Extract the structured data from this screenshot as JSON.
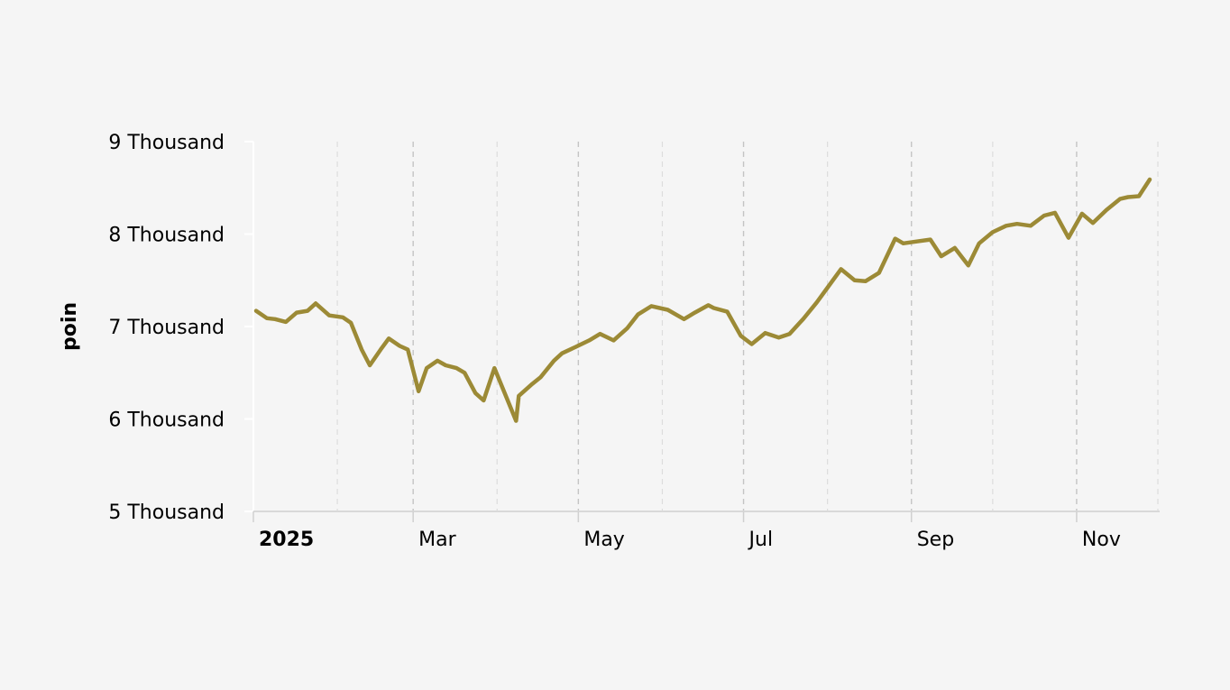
{
  "chart_data": {
    "type": "line",
    "title": "",
    "xlabel": "",
    "ylabel": "poin",
    "ylim": [
      5000,
      9000
    ],
    "xlim": [
      "2025-01-01",
      "2025-12-01"
    ],
    "y_ticks": [
      {
        "value": 5000,
        "label": "5 Thousand"
      },
      {
        "value": 6000,
        "label": "6 Thousand"
      },
      {
        "value": 7000,
        "label": "7 Thousand"
      },
      {
        "value": 8000,
        "label": "8 Thousand"
      },
      {
        "value": 9000,
        "label": "9 Thousand"
      }
    ],
    "x_ticks": [
      {
        "date": "2025-01-01",
        "label": "2025",
        "bold": true
      },
      {
        "date": "2025-03-01",
        "label": "Mar",
        "bold": false
      },
      {
        "date": "2025-05-01",
        "label": "May",
        "bold": false
      },
      {
        "date": "2025-07-01",
        "label": "Jul",
        "bold": false
      },
      {
        "date": "2025-09-01",
        "label": "Sep",
        "bold": false
      },
      {
        "date": "2025-11-01",
        "label": "Nov",
        "bold": false
      }
    ],
    "x_minor_ticks": [
      "2025-02-01",
      "2025-04-01",
      "2025-06-01",
      "2025-08-01",
      "2025-10-01",
      "2025-12-01"
    ],
    "grid": true,
    "line_color": "#9c8a36",
    "series": [
      {
        "name": "",
        "x": [
          "2025-01-02",
          "2025-01-06",
          "2025-01-09",
          "2025-01-13",
          "2025-01-17",
          "2025-01-21",
          "2025-01-24",
          "2025-01-29",
          "2025-02-03",
          "2025-02-06",
          "2025-02-10",
          "2025-02-13",
          "2025-02-17",
          "2025-02-20",
          "2025-02-24",
          "2025-02-27",
          "2025-03-03",
          "2025-03-06",
          "2025-03-10",
          "2025-03-13",
          "2025-03-17",
          "2025-03-20",
          "2025-03-24",
          "2025-03-27",
          "2025-03-31",
          "2025-04-08",
          "2025-04-09",
          "2025-04-14",
          "2025-04-17",
          "2025-04-22",
          "2025-04-25",
          "2025-04-30",
          "2025-05-05",
          "2025-05-09",
          "2025-05-14",
          "2025-05-19",
          "2025-05-23",
          "2025-05-28",
          "2025-06-03",
          "2025-06-09",
          "2025-06-13",
          "2025-06-18",
          "2025-06-20",
          "2025-06-25",
          "2025-06-30",
          "2025-07-04",
          "2025-07-09",
          "2025-07-14",
          "2025-07-18",
          "2025-07-23",
          "2025-07-28",
          "2025-08-01",
          "2025-08-06",
          "2025-08-11",
          "2025-08-15",
          "2025-08-20",
          "2025-08-26",
          "2025-08-29",
          "2025-09-03",
          "2025-09-08",
          "2025-09-12",
          "2025-09-17",
          "2025-09-22",
          "2025-09-26",
          "2025-10-01",
          "2025-10-06",
          "2025-10-10",
          "2025-10-15",
          "2025-10-20",
          "2025-10-24",
          "2025-10-29",
          "2025-11-03",
          "2025-11-07",
          "2025-11-12",
          "2025-11-17",
          "2025-11-20",
          "2025-11-24",
          "2025-11-28"
        ],
        "y": [
          7170,
          7090,
          7080,
          7050,
          7150,
          7170,
          7250,
          7120,
          7100,
          7040,
          6750,
          6580,
          6750,
          6870,
          6790,
          6750,
          6300,
          6550,
          6630,
          6580,
          6550,
          6500,
          6280,
          6200,
          6550,
          5980,
          6250,
          6380,
          6450,
          6630,
          6710,
          6780,
          6850,
          6920,
          6850,
          6980,
          7130,
          7220,
          7180,
          7080,
          7150,
          7230,
          7200,
          7160,
          6900,
          6810,
          6930,
          6880,
          6920,
          7080,
          7260,
          7420,
          7620,
          7500,
          7490,
          7580,
          7950,
          7900,
          7920,
          7940,
          7760,
          7850,
          7660,
          7900,
          8020,
          8090,
          8110,
          8090,
          8200,
          8230,
          7960,
          8220,
          8120,
          8260,
          8380,
          8400,
          8410,
          8590
        ]
      }
    ]
  }
}
